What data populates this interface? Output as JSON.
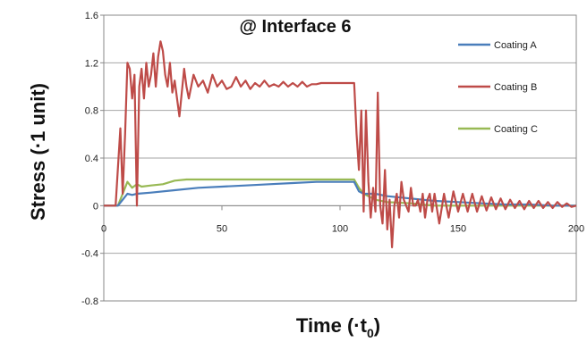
{
  "chart_data": {
    "type": "line",
    "title": "@ Interface 6",
    "xlabel": "Time (·t",
    "xlabel_sub": "0",
    "xlabel_end": ")",
    "ylabel": "Stress (·1 unit)",
    "xlim": [
      0,
      200
    ],
    "ylim": [
      -0.8,
      1.6
    ],
    "xticks": [
      "0",
      "50",
      "100",
      "150",
      "200"
    ],
    "yticks": [
      "1.6",
      "1.2",
      "0.8",
      "0.4",
      "0",
      "-0.4",
      "-0.8"
    ],
    "ytick_values": [
      1.6,
      1.2,
      0.8,
      0.4,
      0,
      -0.4,
      -0.8
    ],
    "xtick_values": [
      0,
      50,
      100,
      150,
      200
    ],
    "grid": true,
    "legend_position": "right",
    "series": [
      {
        "name": "Coating A",
        "color": "#4a7ebb",
        "x": [
          0,
          6,
          8,
          10,
          12,
          14,
          20,
          30,
          40,
          50,
          60,
          70,
          80,
          90,
          100,
          106,
          108,
          110,
          115,
          120,
          130,
          140,
          150,
          160,
          170,
          180,
          190,
          200
        ],
        "y": [
          0,
          0,
          0.05,
          0.1,
          0.09,
          0.1,
          0.11,
          0.13,
          0.15,
          0.16,
          0.17,
          0.18,
          0.19,
          0.2,
          0.2,
          0.2,
          0.12,
          0.1,
          0.1,
          0.08,
          0.06,
          0.04,
          0.03,
          0.02,
          0.01,
          0.01,
          0.0,
          0.0
        ]
      },
      {
        "name": "Coating B",
        "color": "#be4b48",
        "x": [
          0,
          5,
          7,
          8,
          9,
          10,
          11,
          12,
          13,
          14,
          15,
          16,
          17,
          18,
          19,
          20,
          21,
          22,
          23,
          24,
          25,
          26,
          27,
          28,
          29,
          30,
          32,
          34,
          35,
          36,
          38,
          40,
          42,
          44,
          46,
          48,
          50,
          52,
          54,
          56,
          58,
          60,
          62,
          64,
          66,
          68,
          70,
          72,
          74,
          76,
          78,
          80,
          82,
          84,
          86,
          88,
          90,
          92,
          94,
          96,
          98,
          100,
          102,
          104,
          106,
          107,
          108,
          109,
          110,
          111,
          112,
          113,
          114,
          115,
          116,
          117,
          118,
          119,
          120,
          121,
          122,
          123,
          124,
          125,
          126,
          127,
          128,
          129,
          130,
          131,
          132,
          133,
          134,
          135,
          136,
          137,
          138,
          139,
          140,
          142,
          144,
          146,
          148,
          150,
          152,
          154,
          156,
          158,
          160,
          162,
          164,
          166,
          168,
          170,
          172,
          174,
          176,
          178,
          180,
          182,
          184,
          186,
          188,
          190,
          192,
          194,
          196,
          198,
          200
        ],
        "y": [
          0,
          0,
          0.65,
          0.1,
          0.6,
          1.2,
          1.15,
          0.9,
          1.1,
          0.0,
          1.0,
          1.15,
          0.9,
          1.2,
          1.0,
          1.1,
          1.28,
          1.0,
          1.25,
          1.38,
          1.3,
          1.1,
          1.0,
          1.2,
          0.95,
          1.05,
          0.75,
          1.15,
          1.0,
          0.9,
          1.1,
          1.0,
          1.05,
          0.95,
          1.1,
          1.0,
          1.05,
          0.98,
          1.0,
          1.08,
          1.0,
          1.05,
          0.98,
          1.03,
          1.0,
          1.05,
          1.0,
          1.02,
          1.0,
          1.04,
          1.0,
          1.03,
          1.0,
          1.04,
          1.0,
          1.02,
          1.02,
          1.03,
          1.03,
          1.03,
          1.03,
          1.03,
          1.03,
          1.03,
          1.03,
          0.6,
          0.3,
          0.8,
          -0.05,
          0.8,
          0.2,
          -0.1,
          0.15,
          -0.05,
          0.95,
          0.0,
          -0.15,
          0.3,
          -0.2,
          0.05,
          -0.35,
          0.0,
          0.1,
          -0.1,
          0.2,
          0.05,
          0.0,
          -0.05,
          0.15,
          0.0,
          0.0,
          0.05,
          -0.05,
          0.1,
          -0.1,
          0.05,
          0.1,
          -0.05,
          0.1,
          -0.15,
          0.1,
          -0.1,
          0.12,
          -0.05,
          0.1,
          -0.05,
          0.1,
          -0.05,
          0.08,
          -0.04,
          0.07,
          -0.03,
          0.06,
          -0.03,
          0.05,
          -0.02,
          0.04,
          -0.03,
          0.04,
          -0.02,
          0.04,
          -0.02,
          0.03,
          -0.02,
          0.03,
          -0.01,
          0.02,
          -0.01,
          0.0
        ]
      },
      {
        "name": "Coating C",
        "color": "#98b954",
        "x": [
          0,
          6,
          8,
          10,
          12,
          14,
          16,
          20,
          25,
          30,
          35,
          40,
          50,
          60,
          70,
          80,
          90,
          100,
          106,
          108,
          110,
          115,
          120,
          130,
          140,
          150,
          160,
          170,
          180,
          190,
          200
        ],
        "y": [
          0,
          0,
          0.1,
          0.2,
          0.15,
          0.18,
          0.16,
          0.17,
          0.18,
          0.21,
          0.22,
          0.22,
          0.22,
          0.22,
          0.22,
          0.22,
          0.22,
          0.22,
          0.22,
          0.15,
          0.1,
          0.05,
          0.03,
          0.02,
          0.0,
          0.0,
          0.0,
          0.0,
          0.0,
          0.0,
          0.0
        ]
      }
    ]
  }
}
